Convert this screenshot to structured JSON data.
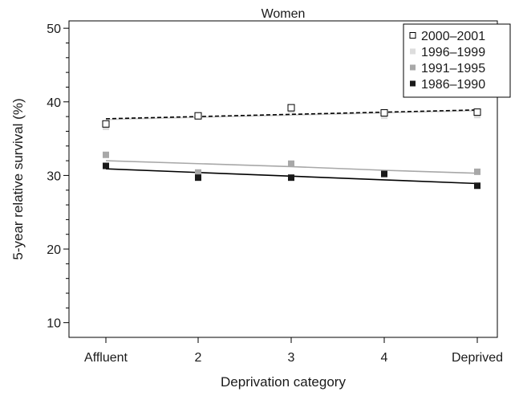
{
  "chart_data": {
    "type": "scatter",
    "title": "Women",
    "xlabel": "Deprivation category",
    "ylabel": "5-year relative survival (%)",
    "categories": [
      "Affluent",
      "2",
      "3",
      "4",
      "Deprived"
    ],
    "ylim": [
      8,
      51
    ],
    "yticks": [
      10,
      20,
      30,
      40,
      50
    ],
    "grid": false,
    "legend_position": "top-right",
    "series": [
      {
        "name": "2000–2001",
        "marker": "open-square",
        "color": "#000000",
        "values": [
          37.0,
          38.1,
          39.2,
          38.5,
          38.6
        ],
        "trend": [
          37.7,
          38.0,
          38.3,
          38.6,
          38.9
        ],
        "trend_style": "dashed",
        "trend_color": "#000000"
      },
      {
        "name": "1996–1999",
        "marker": "filled-square",
        "color": "#dddddd",
        "values": [
          36.6,
          38.0,
          38.9,
          38.1,
          38.2
        ],
        "trend": [
          37.6,
          37.9,
          38.2,
          38.5,
          38.8
        ],
        "trend_style": "solid",
        "trend_color": "#d0d0d0"
      },
      {
        "name": "1991–1995",
        "marker": "filled-square",
        "color": "#a8a8a8",
        "values": [
          32.8,
          30.4,
          31.6,
          30.3,
          30.5
        ],
        "trend": [
          32.0,
          31.6,
          31.2,
          30.7,
          30.3
        ],
        "trend_style": "solid",
        "trend_color": "#a8a8a8"
      },
      {
        "name": "1986–1990",
        "marker": "filled-square",
        "color": "#1a1a1a",
        "values": [
          31.3,
          29.7,
          29.7,
          30.2,
          28.6
        ],
        "trend": [
          30.9,
          30.4,
          29.9,
          29.4,
          28.9
        ],
        "trend_style": "solid",
        "trend_color": "#000000"
      }
    ]
  }
}
